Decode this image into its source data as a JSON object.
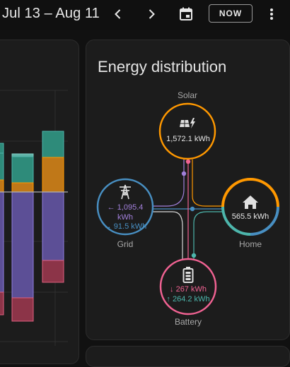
{
  "header": {
    "date_range": "Jul 13 – Aug 11",
    "now_label": "NOW"
  },
  "icons": {
    "prev": "chevron-left-icon",
    "next": "chevron-right-icon",
    "calendar": "calendar-icon",
    "more": "more-vertical-icon",
    "solar": "solar-power-icon",
    "grid": "transmission-tower-icon",
    "home": "home-icon",
    "battery": "battery-icon"
  },
  "energy": {
    "title": "Energy distribution",
    "solar": {
      "label": "Solar",
      "value": "1,572.1 kWh"
    },
    "grid": {
      "label": "Grid",
      "from_value": "← 1,095.4",
      "from_unit": "kWh",
      "to_value": "→ 91.5 kWh"
    },
    "home": {
      "label": "Home",
      "value": "565.5 kWh"
    },
    "battery": {
      "label": "Battery",
      "out_value": "↓ 267 kWh",
      "in_value": "↑ 264.2 kWh"
    }
  },
  "colors": {
    "solar": "#ff9800",
    "grid_import": "#a280db",
    "grid_export": "#8353d1",
    "grid_ring": "#488fc2",
    "home": "#4db6ac",
    "battery_ring": "#f06292",
    "battery_out": "#f06292",
    "battery_in": "#4db6ac",
    "bar_purple": "#6c5aa6",
    "bar_teal": "#2e8b7a",
    "bar_orange": "#c07818",
    "bar_red": "#9c3a52"
  }
}
